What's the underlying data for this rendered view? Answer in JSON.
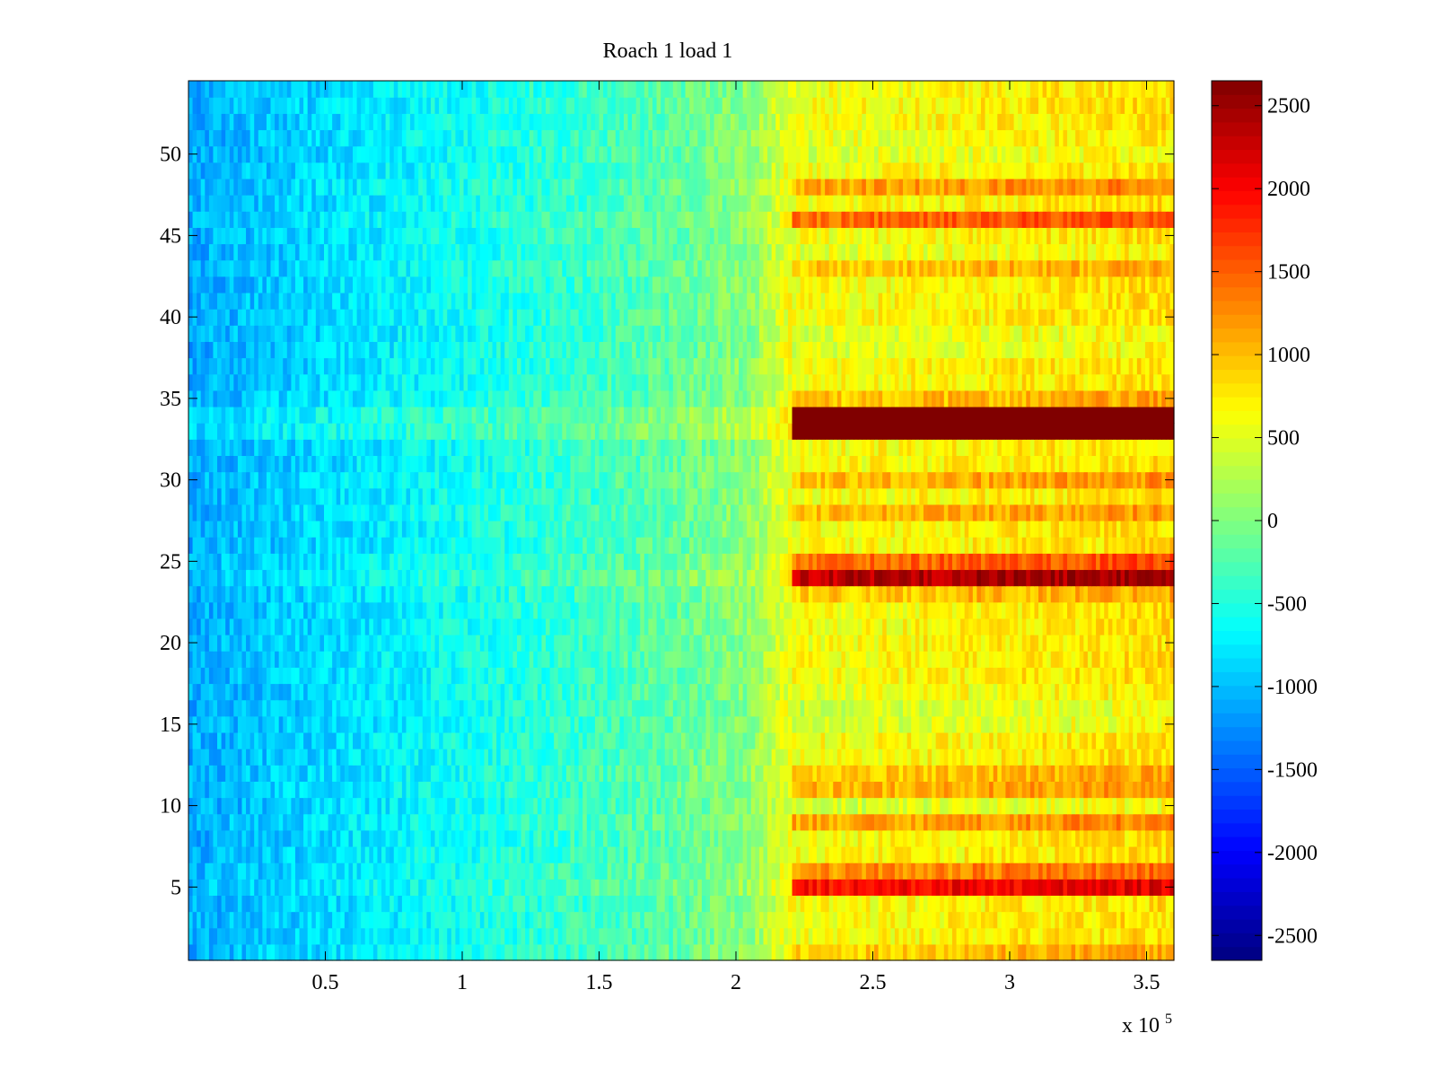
{
  "chart_data": {
    "type": "heatmap",
    "title": "Roach 1 load 1",
    "xlabel": "",
    "ylabel": "",
    "x_exponent_label": "x 10",
    "x_exponent_power": "5",
    "xlim": [
      0,
      3.6
    ],
    "ylim": [
      0.5,
      54.5
    ],
    "n_rows": 54,
    "x_ticks": [
      {
        "value": 0.5,
        "label": "0.5"
      },
      {
        "value": 1,
        "label": "1"
      },
      {
        "value": 1.5,
        "label": "1.5"
      },
      {
        "value": 2,
        "label": "2"
      },
      {
        "value": 2.5,
        "label": "2.5"
      },
      {
        "value": 3,
        "label": "3"
      },
      {
        "value": 3.5,
        "label": "3.5"
      }
    ],
    "y_ticks": [
      {
        "value": 5,
        "label": "5"
      },
      {
        "value": 10,
        "label": "10"
      },
      {
        "value": 15,
        "label": "15"
      },
      {
        "value": 20,
        "label": "20"
      },
      {
        "value": 25,
        "label": "25"
      },
      {
        "value": 30,
        "label": "30"
      },
      {
        "value": 35,
        "label": "35"
      },
      {
        "value": 40,
        "label": "40"
      },
      {
        "value": 45,
        "label": "45"
      },
      {
        "value": 50,
        "label": "50"
      }
    ],
    "colorbar": {
      "colormap": "jet",
      "clim": [
        -2650,
        2650
      ],
      "ticks": [
        {
          "value": 2500,
          "label": "2500"
        },
        {
          "value": 2000,
          "label": "2000"
        },
        {
          "value": 1500,
          "label": "1500"
        },
        {
          "value": 1000,
          "label": "1000"
        },
        {
          "value": 500,
          "label": "500"
        },
        {
          "value": 0,
          "label": "0"
        },
        {
          "value": -500,
          "label": "-500"
        },
        {
          "value": -1000,
          "label": "-1000"
        },
        {
          "value": -1500,
          "label": "-1500"
        },
        {
          "value": -2000,
          "label": "-2000"
        },
        {
          "value": -2500,
          "label": "-2500"
        }
      ]
    },
    "x_columns": [
      0,
      0.3,
      0.6,
      0.9,
      1.2,
      1.5,
      1.8,
      2.05,
      2.2,
      2.5,
      2.8,
      3.1,
      3.4,
      3.6
    ],
    "row_offset_columns": [
      0,
      0,
      0,
      0,
      0,
      0,
      0,
      0,
      1,
      1,
      1,
      1,
      1,
      1
    ],
    "baseline_profile": [
      -1100,
      -950,
      -800,
      -650,
      -500,
      -350,
      -150,
      50,
      600,
      650,
      700,
      750,
      800,
      850
    ],
    "row_offsets": [
      {
        "row": 1,
        "offset": 300
      },
      {
        "row": 2,
        "offset": 0
      },
      {
        "row": 3,
        "offset": 0
      },
      {
        "row": 4,
        "offset": 0
      },
      {
        "row": 5,
        "offset": 1300
      },
      {
        "row": 6,
        "offset": 600
      },
      {
        "row": 7,
        "offset": 0
      },
      {
        "row": 8,
        "offset": 0
      },
      {
        "row": 9,
        "offset": 500
      },
      {
        "row": 10,
        "offset": -200
      },
      {
        "row": 11,
        "offset": 400
      },
      {
        "row": 12,
        "offset": 300
      },
      {
        "row": 13,
        "offset": 0
      },
      {
        "row": 14,
        "offset": 0
      },
      {
        "row": 15,
        "offset": -200
      },
      {
        "row": 16,
        "offset": -250
      },
      {
        "row": 17,
        "offset": -100
      },
      {
        "row": 18,
        "offset": 0
      },
      {
        "row": 19,
        "offset": 0
      },
      {
        "row": 20,
        "offset": 0
      },
      {
        "row": 21,
        "offset": 0
      },
      {
        "row": 22,
        "offset": 0
      },
      {
        "row": 23,
        "offset": 300
      },
      {
        "row": 24,
        "offset": 1700
      },
      {
        "row": 25,
        "offset": 800
      },
      {
        "row": 26,
        "offset": 0
      },
      {
        "row": 27,
        "offset": 0
      },
      {
        "row": 28,
        "offset": 400
      },
      {
        "row": 29,
        "offset": 0
      },
      {
        "row": 30,
        "offset": 400
      },
      {
        "row": 31,
        "offset": 0
      },
      {
        "row": 32,
        "offset": 0
      },
      {
        "row": 33,
        "offset": 2700
      },
      {
        "row": 34,
        "offset": 2700
      },
      {
        "row": 35,
        "offset": 300
      },
      {
        "row": 36,
        "offset": 0
      },
      {
        "row": 37,
        "offset": 0
      },
      {
        "row": 38,
        "offset": -150
      },
      {
        "row": 39,
        "offset": -150
      },
      {
        "row": 40,
        "offset": 0
      },
      {
        "row": 41,
        "offset": 0
      },
      {
        "row": 42,
        "offset": 0
      },
      {
        "row": 43,
        "offset": 300
      },
      {
        "row": 44,
        "offset": -100
      },
      {
        "row": 45,
        "offset": 0
      },
      {
        "row": 46,
        "offset": 800
      },
      {
        "row": 47,
        "offset": 0
      },
      {
        "row": 48,
        "offset": 500
      },
      {
        "row": 49,
        "offset": 0
      },
      {
        "row": 50,
        "offset": -150
      },
      {
        "row": 51,
        "offset": -100
      },
      {
        "row": 52,
        "offset": 0
      },
      {
        "row": 53,
        "offset": 0
      },
      {
        "row": 54,
        "offset": 0
      }
    ],
    "noise_amplitude": 250
  }
}
